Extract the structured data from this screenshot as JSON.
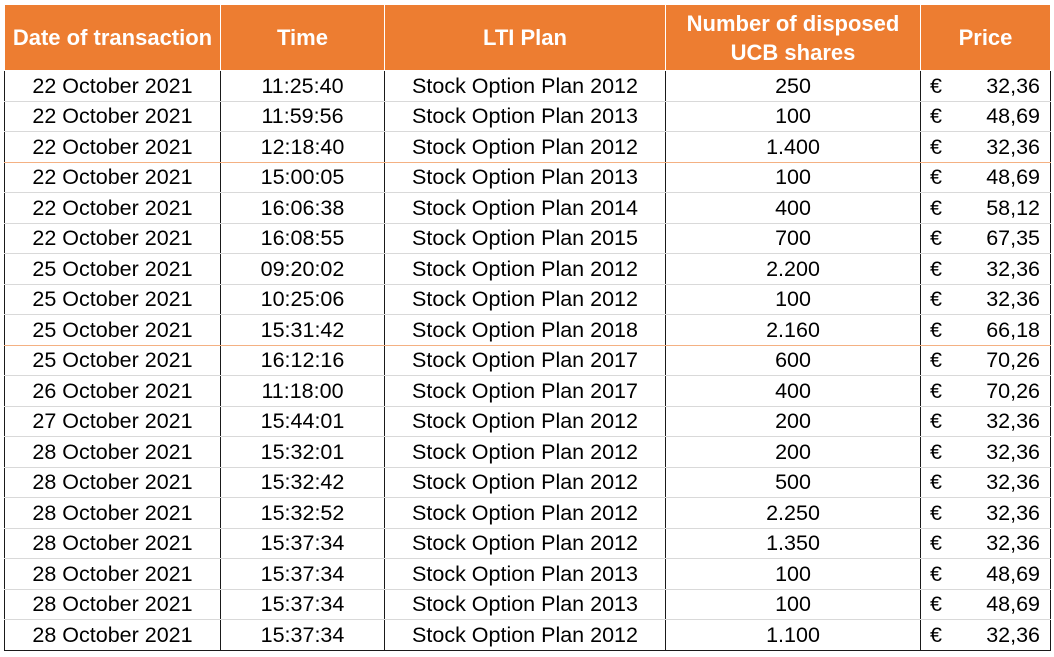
{
  "table": {
    "headers": {
      "date": "Date of transaction",
      "time": "Time",
      "plan": "LTI Plan",
      "number_line1": "Number of disposed",
      "number_line2": "UCB shares",
      "price": "Price"
    },
    "currency_symbol": "€",
    "rows": [
      {
        "date": "22 October 2021",
        "time": "11:25:40",
        "plan": "Stock Option Plan 2012",
        "number": "250",
        "price": "32,36"
      },
      {
        "date": "22 October 2021",
        "time": "11:59:56",
        "plan": "Stock Option Plan 2013",
        "number": "100",
        "price": "48,69"
      },
      {
        "date": "22 October 2021",
        "time": "12:18:40",
        "plan": "Stock Option Plan 2012",
        "number": "1.400",
        "price": "32,36"
      },
      {
        "date": "22 October 2021",
        "time": "15:00:05",
        "plan": "Stock Option Plan 2013",
        "number": "100",
        "price": "48,69"
      },
      {
        "date": "22 October 2021",
        "time": "16:06:38",
        "plan": "Stock Option Plan 2014",
        "number": "400",
        "price": "58,12"
      },
      {
        "date": "22 October 2021",
        "time": "16:08:55",
        "plan": "Stock Option Plan 2015",
        "number": "700",
        "price": "67,35"
      },
      {
        "date": "25 October 2021",
        "time": "09:20:02",
        "plan": "Stock Option Plan 2012",
        "number": "2.200",
        "price": "32,36"
      },
      {
        "date": "25 October 2021",
        "time": "10:25:06",
        "plan": "Stock Option Plan 2012",
        "number": "100",
        "price": "32,36"
      },
      {
        "date": "25 October 2021",
        "time": "15:31:42",
        "plan": "Stock Option Plan 2018",
        "number": "2.160",
        "price": "66,18"
      },
      {
        "date": "25 October 2021",
        "time": "16:12:16",
        "plan": "Stock Option Plan 2017",
        "number": "600",
        "price": "70,26"
      },
      {
        "date": "26 October 2021",
        "time": "11:18:00",
        "plan": "Stock Option Plan 2017",
        "number": "400",
        "price": "70,26"
      },
      {
        "date": "27 October 2021",
        "time": "15:44:01",
        "plan": "Stock Option Plan 2012",
        "number": "200",
        "price": "32,36"
      },
      {
        "date": "28 October 2021",
        "time": "15:32:01",
        "plan": "Stock Option Plan 2012",
        "number": "200",
        "price": "32,36"
      },
      {
        "date": "28 October 2021",
        "time": "15:32:42",
        "plan": "Stock Option Plan 2012",
        "number": "500",
        "price": "32,36"
      },
      {
        "date": "28 October 2021",
        "time": "15:32:52",
        "plan": "Stock Option Plan 2012",
        "number": "2.250",
        "price": "32,36"
      },
      {
        "date": "28 October 2021",
        "time": "15:37:34",
        "plan": "Stock Option Plan 2012",
        "number": "1.350",
        "price": "32,36"
      },
      {
        "date": "28 October 2021",
        "time": "15:37:34",
        "plan": "Stock Option Plan 2013",
        "number": "100",
        "price": "48,69"
      },
      {
        "date": "28 October 2021",
        "time": "15:37:34",
        "plan": "Stock Option Plan 2013",
        "number": "100",
        "price": "48,69"
      },
      {
        "date": "28 October 2021",
        "time": "15:37:34",
        "plan": "Stock Option Plan 2012",
        "number": "1.100",
        "price": "32,36"
      }
    ]
  },
  "colors": {
    "header_background": "#ed7d31",
    "header_text": "#ffffff",
    "body_text": "#000000",
    "grid_dark": "#1a1a1a",
    "grid_light": "#d9d9d9",
    "grid_orange": "#f4b183"
  }
}
